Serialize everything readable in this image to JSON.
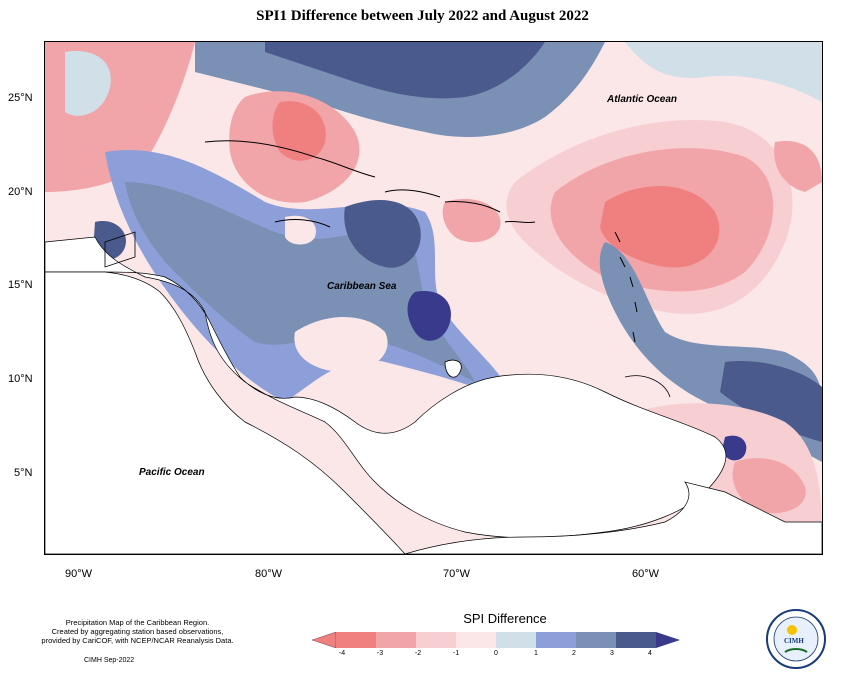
{
  "title": "SPI1 Difference between July 2022 and August 2022",
  "ocean_labels": {
    "atlantic": "Atlantic Ocean",
    "caribbean": "Caribbean Sea",
    "pacific": "Pacific Ocean"
  },
  "lat_labels": [
    "25°N",
    "20°N",
    "15°N",
    "10°N",
    "5°N"
  ],
  "lon_labels": [
    "90°W",
    "80°W",
    "70°W",
    "60°W"
  ],
  "legend": {
    "title": "SPI Difference",
    "ticks": [
      "-4",
      "-3",
      "-2",
      "-1",
      "0",
      "1",
      "2",
      "3",
      "4"
    ],
    "colors": [
      "#f08080",
      "#f2a5a8",
      "#f7cfd3",
      "#fbe6e8",
      "#d0dfe8",
      "#8c9fd8",
      "#7a90b4",
      "#4a5a8c",
      "#3a3a8c"
    ]
  },
  "footnote": {
    "line1": "Precipitation Map of the Caribbean Region.",
    "line2": "Created by aggregating station based observations,",
    "line3": "provided by CariCOF, with NCEP/NCAR Reanalysis Data.",
    "credit": "CIMH Sep-2022"
  },
  "logo": {
    "text": "CIMH",
    "icon": "cimh-logo-icon"
  }
}
